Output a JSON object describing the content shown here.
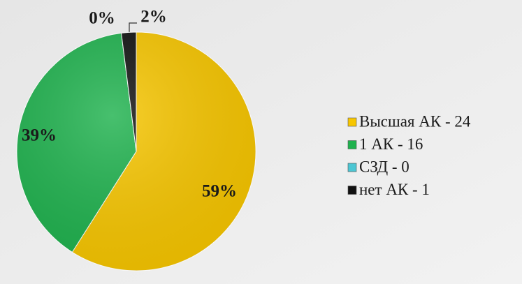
{
  "chart_data": {
    "type": "pie",
    "categories": [
      "Высшая АК - 24",
      "1 АК - 16",
      "СЗД - 0",
      "нет  АК - 1"
    ],
    "values": [
      59,
      39,
      0,
      2
    ],
    "value_labels": [
      "59%",
      "39%",
      "0%",
      "2%"
    ],
    "colors": [
      "#f7c600",
      "#1fb24e",
      "#4cc6d3",
      "#111111"
    ],
    "legend": "right"
  }
}
